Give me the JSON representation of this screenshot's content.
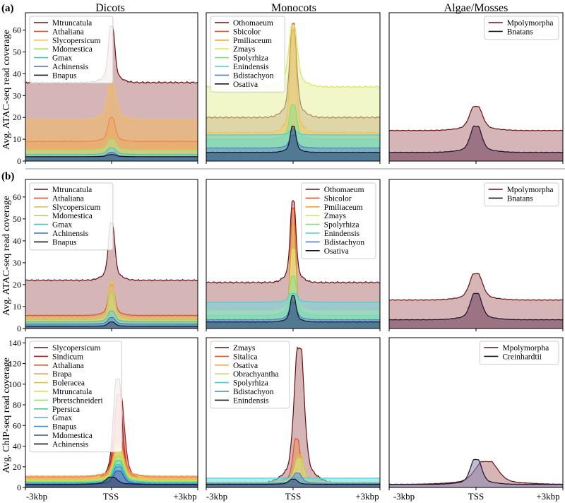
{
  "figure": {
    "section_a_label": "(a)",
    "section_b_label": "(b)",
    "column_titles": [
      "Dicots",
      "Monocots",
      "Algae/Mosses"
    ],
    "row_ylabels": [
      "Avg. ATAC-seq read coverage",
      "Avg. ATAC-seq read coverage",
      "Avg. ChIP-seq read coverage"
    ],
    "x_tick_labels": [
      "-3kbp",
      "TSS",
      "+3kbp"
    ]
  },
  "chart_data": [
    {
      "type": "area",
      "panel": "a-dicots",
      "ylim": [
        0,
        68
      ],
      "yticks": [
        0,
        10,
        20,
        30,
        40,
        50,
        60
      ],
      "legend_position": "top-left",
      "x": [
        "-3kbp",
        "TSS",
        "+3kbp"
      ],
      "series": [
        {
          "name": "Mtruncatula",
          "color": "#6b0d12",
          "fill": "#b3787a",
          "base": 36,
          "peak": 62,
          "width": 0.045
        },
        {
          "name": "Athaliana",
          "color": "#e0532d",
          "fill": "#e6925f",
          "base": 9,
          "peak": 20,
          "width": 0.05
        },
        {
          "name": "Slycopersicum",
          "color": "#f5c05c",
          "fill": "#f2b860",
          "base": 19,
          "peak": 36,
          "width": 0.06
        },
        {
          "name": "Mdomestica",
          "color": "#9ee26a",
          "fill": "#b5e58a",
          "base": 5,
          "peak": 10,
          "width": 0.06
        },
        {
          "name": "Gmax",
          "color": "#3cc8b8",
          "fill": "#6fd3c6",
          "base": 3,
          "peak": 6,
          "width": 0.06
        },
        {
          "name": "Achinensis",
          "color": "#3b74c4",
          "fill": "#5a8fcf",
          "base": 2,
          "peak": 4,
          "width": 0.06
        },
        {
          "name": "Bnapus",
          "color": "#1a1030",
          "fill": "#3b4a6e",
          "base": 2,
          "peak": 3,
          "width": 0.06
        }
      ]
    },
    {
      "type": "area",
      "panel": "a-monocots",
      "ylim": [
        0,
        68
      ],
      "legend_position": "top-left",
      "x": [
        "-3kbp",
        "TSS",
        "+3kbp"
      ],
      "series": [
        {
          "name": "Othomaeum",
          "color": "#6b0d12",
          "fill": "#b3787a",
          "base": 20,
          "peak": 60,
          "width": 0.05
        },
        {
          "name": "Sbicolor",
          "color": "#e0532d",
          "fill": "#e6925f",
          "base": 13,
          "peak": 63,
          "width": 0.04
        },
        {
          "name": "Pmiliaceum",
          "color": "#e8a535",
          "fill": "#edb45a",
          "base": 13,
          "peak": 58,
          "width": 0.04
        },
        {
          "name": "Zmays",
          "color": "#d8e85a",
          "fill": "#e6f09a",
          "base": 34,
          "peak": 62,
          "width": 0.06
        },
        {
          "name": "Spolyrhiza",
          "color": "#7fe07a",
          "fill": "#8fe08a",
          "base": 10,
          "peak": 26,
          "width": 0.05
        },
        {
          "name": "Enindensis",
          "color": "#4ad0d8",
          "fill": "#6cd8de",
          "base": 12,
          "peak": 14,
          "width": 0.06
        },
        {
          "name": "Bdistachyon",
          "color": "#4a80c8",
          "fill": "#6b95cf",
          "base": 6,
          "peak": 12,
          "width": 0.05
        },
        {
          "name": "Osativa",
          "color": "#1a1030",
          "fill": "#2b4a68",
          "base": 4,
          "peak": 16,
          "width": 0.04
        }
      ]
    },
    {
      "type": "area",
      "panel": "a-algae",
      "ylim": [
        0,
        68
      ],
      "legend_position": "top-right",
      "x": [
        "-3kbp",
        "TSS",
        "+3kbp"
      ],
      "series": [
        {
          "name": "Mpolymorpha",
          "color": "#6b0d12",
          "fill": "#b3787a",
          "base": 14,
          "peak": 25,
          "width": 0.09
        },
        {
          "name": "Bnatans",
          "color": "#1a1030",
          "fill": "#6e3d5a",
          "base": 4,
          "peak": 16,
          "width": 0.08
        }
      ]
    },
    {
      "type": "area",
      "panel": "b-dicots",
      "ylim": [
        0,
        68
      ],
      "yticks": [
        0,
        10,
        20,
        30,
        40,
        50,
        60
      ],
      "legend_position": "top-left",
      "x": [
        "-3kbp",
        "TSS",
        "+3kbp"
      ],
      "series": [
        {
          "name": "Mtruncatula",
          "color": "#6b0d12",
          "fill": "#b3787a",
          "base": 22,
          "peak": 48,
          "width": 0.045
        },
        {
          "name": "Athaliana",
          "color": "#e0532d",
          "fill": "#e6925f",
          "base": 6,
          "peak": 20,
          "width": 0.045
        },
        {
          "name": "Slycopersicum",
          "color": "#e0c050",
          "fill": "#e8cc6a",
          "base": 5,
          "peak": 22,
          "width": 0.04
        },
        {
          "name": "Mdomestica",
          "color": "#b8d060",
          "fill": "#c8dc86",
          "base": 4,
          "peak": 16,
          "width": 0.045
        },
        {
          "name": "Gmax",
          "color": "#3cc8b8",
          "fill": "#6fd3c6",
          "base": 3,
          "peak": 8,
          "width": 0.05
        },
        {
          "name": "Achinensis",
          "color": "#3b74c4",
          "fill": "#5a8fcf",
          "base": 2,
          "peak": 5,
          "width": 0.05
        },
        {
          "name": "Bnapus",
          "color": "#1a1030",
          "fill": "#3b4a6e",
          "base": 1,
          "peak": 3,
          "width": 0.05
        }
      ]
    },
    {
      "type": "area",
      "panel": "b-monocots",
      "ylim": [
        0,
        68
      ],
      "legend_position": "top-right",
      "x": [
        "-3kbp",
        "TSS",
        "+3kbp"
      ],
      "series": [
        {
          "name": "Othomaeum",
          "color": "#6b0d12",
          "fill": "#b3787a",
          "base": 21,
          "peak": 58,
          "width": 0.04
        },
        {
          "name": "Sbicolor",
          "color": "#e0532d",
          "fill": "#e6925f",
          "base": 4,
          "peak": 55,
          "width": 0.035
        },
        {
          "name": "Pmiliaceum",
          "color": "#e8a535",
          "fill": "#edb45a",
          "base": 5,
          "peak": 47,
          "width": 0.035
        },
        {
          "name": "Zmays",
          "color": "#d8e85a",
          "fill": "#e6f09a",
          "base": 8,
          "peak": 36,
          "width": 0.035
        },
        {
          "name": "Spolyrhiza",
          "color": "#7fe07a",
          "fill": "#8fe08a",
          "base": 6,
          "peak": 24,
          "width": 0.05
        },
        {
          "name": "Enindensis",
          "color": "#4ad0d8",
          "fill": "#6cd8de",
          "base": 12,
          "peak": 16,
          "width": 0.06
        },
        {
          "name": "Bdistachyon",
          "color": "#4a80c8",
          "fill": "#6b95cf",
          "base": 4,
          "peak": 12,
          "width": 0.05
        },
        {
          "name": "Osativa",
          "color": "#1a1030",
          "fill": "#2b4a68",
          "base": 3,
          "peak": 15,
          "width": 0.04
        }
      ]
    },
    {
      "type": "area",
      "panel": "b-algae",
      "ylim": [
        0,
        68
      ],
      "legend_position": "top-right",
      "x": [
        "-3kbp",
        "TSS",
        "+3kbp"
      ],
      "series": [
        {
          "name": "Mpolymorpha",
          "color": "#6b0d12",
          "fill": "#b3787a",
          "base": 13,
          "peak": 25,
          "width": 0.09
        },
        {
          "name": "Bnatans",
          "color": "#1a1030",
          "fill": "#6e3d5a",
          "base": 4,
          "peak": 16,
          "width": 0.08
        }
      ]
    },
    {
      "type": "area",
      "panel": "chip-dicots",
      "ylim": [
        0,
        145
      ],
      "yticks": [
        0,
        20,
        40,
        60,
        80,
        100,
        120,
        140
      ],
      "legend_position": "top-left",
      "x": [
        "-3kbp",
        "TSS",
        "+3kbp"
      ],
      "series": [
        {
          "name": "Slycopersicum",
          "color": "#6b0d12",
          "fill": "#b3787a",
          "base": 6,
          "peak": 105,
          "center": 0.07,
          "width": 0.06
        },
        {
          "name": "Sindicum",
          "color": "#b01a1a",
          "fill": "#c94a3a",
          "base": 5,
          "peak": 90,
          "center": 0.09,
          "width": 0.07
        },
        {
          "name": "Athaliana",
          "color": "#e0532d",
          "fill": "#e6925f",
          "base": 10,
          "peak": 50,
          "center": 0.08,
          "width": 0.07
        },
        {
          "name": "Brapa",
          "color": "#f0a040",
          "fill": "#f2b060",
          "base": 11,
          "peak": 42,
          "center": 0.08,
          "width": 0.07
        },
        {
          "name": "Boleracea",
          "color": "#e8c040",
          "fill": "#ecd070",
          "base": 8,
          "peak": 38,
          "center": 0.08,
          "width": 0.07
        },
        {
          "name": "Mtruncatula",
          "color": "#d0e050",
          "fill": "#dce880",
          "base": 7,
          "peak": 34,
          "center": 0.08,
          "width": 0.07
        },
        {
          "name": "Pbretschneideri",
          "color": "#90e070",
          "fill": "#a8e890",
          "base": 6,
          "peak": 30,
          "center": 0.08,
          "width": 0.07
        },
        {
          "name": "Ppersica",
          "color": "#40d0a0",
          "fill": "#70dcb8",
          "base": 5,
          "peak": 26,
          "center": 0.08,
          "width": 0.07
        },
        {
          "name": "Gmax",
          "color": "#40c0d8",
          "fill": "#70d0e0",
          "base": 4,
          "peak": 22,
          "center": 0.08,
          "width": 0.07
        },
        {
          "name": "Bnapus",
          "color": "#4090d0",
          "fill": "#6aa8dc",
          "base": 4,
          "peak": 20,
          "center": 0.08,
          "width": 0.07
        },
        {
          "name": "Mdomestica",
          "color": "#3050a8",
          "fill": "#5870b8",
          "base": 3,
          "peak": 16,
          "center": 0.08,
          "width": 0.07
        },
        {
          "name": "Achinensis",
          "color": "#1a1030",
          "fill": "#3b3a5e",
          "base": 3,
          "peak": 10,
          "center": 0.0,
          "width": 0.08
        }
      ]
    },
    {
      "type": "area",
      "panel": "chip-monocots",
      "ylim": [
        0,
        145
      ],
      "legend_position": "top-left",
      "x": [
        "-3kbp",
        "TSS",
        "+3kbp"
      ],
      "series": [
        {
          "name": "Zmays",
          "color": "#6b0d12",
          "fill": "#b3787a",
          "base": 4,
          "peak": 135,
          "center": 0.07,
          "width": 0.07
        },
        {
          "name": "Sitalica",
          "color": "#e0532d",
          "fill": "#e6925f",
          "base": 5,
          "peak": 47,
          "center": 0.04,
          "width": 0.05
        },
        {
          "name": "Osativa",
          "color": "#e8b040",
          "fill": "#ecc060",
          "base": 5,
          "peak": 32,
          "center": 0.07,
          "width": 0.06
        },
        {
          "name": "Obrachyantha",
          "color": "#c0e060",
          "fill": "#d0e88a",
          "base": 5,
          "peak": 28,
          "center": 0.07,
          "width": 0.06
        },
        {
          "name": "Spolyrhiza",
          "color": "#40d0d0",
          "fill": "#70dcdc",
          "base": 9,
          "peak": 10,
          "center": 0.0,
          "width": 0.1
        },
        {
          "name": "Bdistachyon",
          "color": "#4a80c8",
          "fill": "#6b95cf",
          "base": 4,
          "peak": 14,
          "center": 0.05,
          "width": 0.06
        },
        {
          "name": "Enindensis",
          "color": "#1a1030",
          "fill": "#3b4a6e",
          "base": 3,
          "peak": 8,
          "center": 0.0,
          "width": 0.06
        }
      ]
    },
    {
      "type": "area",
      "panel": "chip-algae",
      "ylim": [
        0,
        145
      ],
      "legend_position": "top-right",
      "x": [
        "-3kbp",
        "TSS",
        "+3kbp"
      ],
      "series": [
        {
          "name": "Mpolymorpha",
          "color": "#6b0d12",
          "fill": "#b3787a",
          "base": 3,
          "peak": 25,
          "center": 0.12,
          "width": 0.16
        },
        {
          "name": "Creinhardtii",
          "color": "#1a1030",
          "fill": "#8a86b0",
          "base": 3,
          "peak": 27,
          "center": 0.0,
          "width": 0.08
        }
      ]
    }
  ]
}
